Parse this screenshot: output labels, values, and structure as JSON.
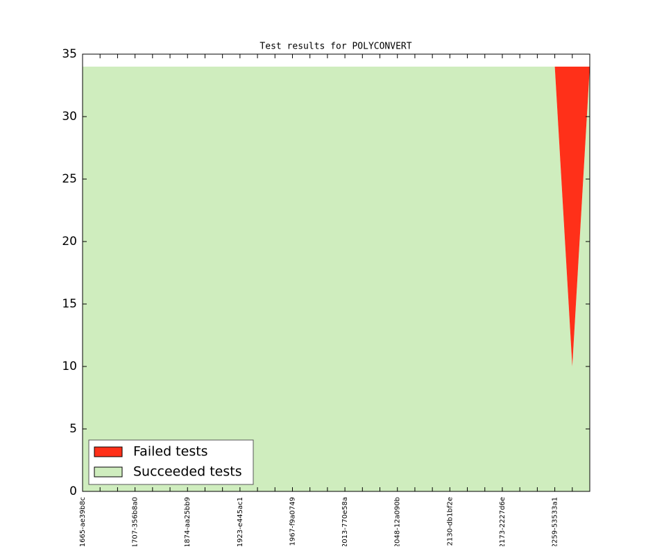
{
  "chart_data": {
    "type": "stacked_area",
    "title": "Test results for POLYCONVERT",
    "categories": [
      "1665-ae39b8c",
      null,
      null,
      "1707-356b8a0",
      null,
      null,
      "1874-aa25bb9",
      null,
      null,
      "1923-e445ac1",
      null,
      null,
      "1967-f9a0749",
      null,
      null,
      "2013-770e58a",
      null,
      null,
      "2048-12a090b",
      null,
      null,
      "2130-db1bf2e",
      null,
      null,
      "2173-2227d6e",
      null,
      null,
      "2259-53533a1",
      null,
      null
    ],
    "series": [
      {
        "name": "Failed tests",
        "color": "#ff3019",
        "values": [
          0,
          0,
          0,
          0,
          0,
          0,
          0,
          0,
          0,
          0,
          0,
          0,
          0,
          0,
          0,
          0,
          0,
          0,
          0,
          0,
          0,
          0,
          0,
          0,
          0,
          0,
          0,
          0,
          24,
          0
        ]
      },
      {
        "name": "Succeeded tests",
        "color": "#cfedbe",
        "values": [
          34,
          34,
          34,
          34,
          34,
          34,
          34,
          34,
          34,
          34,
          34,
          34,
          34,
          34,
          34,
          34,
          34,
          34,
          34,
          34,
          34,
          34,
          34,
          34,
          34,
          34,
          34,
          34,
          10,
          34
        ]
      }
    ],
    "ylim": [
      0,
      35
    ],
    "yticks": [
      0,
      5,
      10,
      15,
      20,
      25,
      30,
      35
    ],
    "legend": "lower left"
  }
}
